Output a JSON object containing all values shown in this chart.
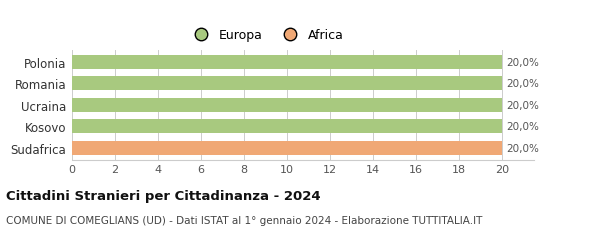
{
  "categories": [
    "Polonia",
    "Romania",
    "Ucraina",
    "Kosovo",
    "Sudafrica"
  ],
  "values": [
    20,
    20,
    20,
    20,
    20
  ],
  "bar_colors": [
    "#a8c97f",
    "#a8c97f",
    "#a8c97f",
    "#a8c97f",
    "#f0a875"
  ],
  "legend_labels": [
    "Europa",
    "Africa"
  ],
  "legend_colors": [
    "#a8c97f",
    "#f0a875"
  ],
  "value_labels": [
    "20,0%",
    "20,0%",
    "20,0%",
    "20,0%",
    "20,0%"
  ],
  "xlim": [
    0,
    20
  ],
  "xticks": [
    0,
    2,
    4,
    6,
    8,
    10,
    12,
    14,
    16,
    18,
    20
  ],
  "title": "Cittadini Stranieri per Cittadinanza - 2024",
  "subtitle": "COMUNE DI COMEGLIANS (UD) - Dati ISTAT al 1° gennaio 2024 - Elaborazione TUTTITALIA.IT",
  "title_fontsize": 9.5,
  "subtitle_fontsize": 7.5,
  "background_color": "#ffffff",
  "grid_color": "#cccccc",
  "bar_height": 0.65
}
